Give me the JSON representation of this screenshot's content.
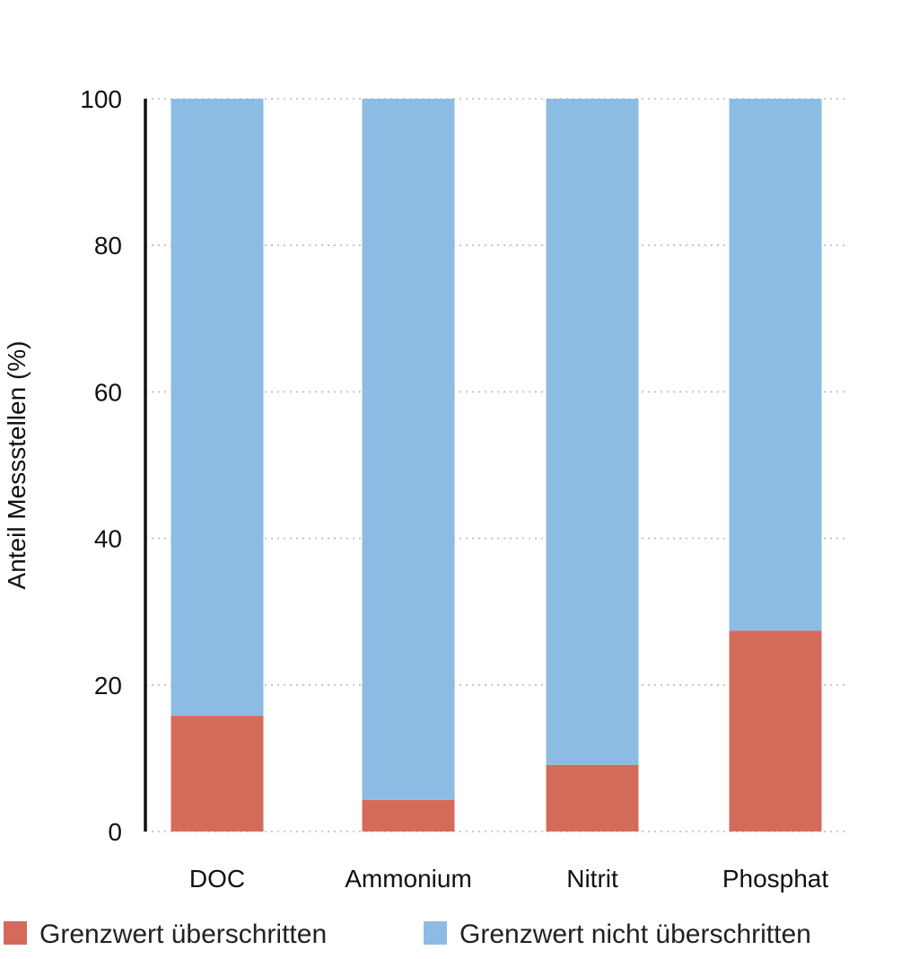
{
  "chart_data": {
    "type": "bar",
    "stacked": true,
    "title": "",
    "xlabel": "",
    "ylabel": "Anteil Messstellen (%)",
    "ylim": [
      0,
      100
    ],
    "yticks": [
      0,
      20,
      40,
      60,
      80,
      100
    ],
    "grid": true,
    "legend_position": "bottom",
    "categories": [
      "DOC",
      "Ammonium",
      "Nitrit",
      "Phosphat"
    ],
    "series": [
      {
        "name": "Grenzwert überschritten",
        "color": "#D46B5A",
        "values": [
          15.8,
          4.3,
          9.1,
          27.4
        ]
      },
      {
        "name": "Grenzwert nicht überschritten",
        "color": "#8CBCE3",
        "values": [
          84.2,
          95.7,
          90.9,
          72.6
        ]
      }
    ]
  }
}
